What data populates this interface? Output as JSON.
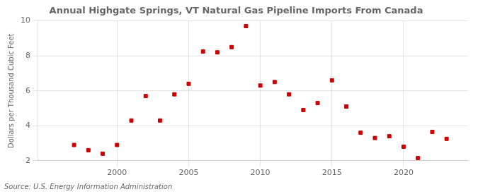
{
  "chart_data": {
    "type": "scatter",
    "title": "Annual Highgate Springs, VT Natural Gas Pipeline Imports From Canada",
    "ylabel": "Dollars per Thousand Cubic Feet",
    "source": "Source: U.S. Energy Information Administration",
    "x": [
      1997,
      1998,
      1999,
      2000,
      2001,
      2002,
      2003,
      2004,
      2005,
      2006,
      2007,
      2008,
      2009,
      2010,
      2011,
      2012,
      2013,
      2014,
      2015,
      2016,
      2017,
      2018,
      2019,
      2020,
      2021,
      2022,
      2023
    ],
    "values": [
      2.9,
      2.6,
      2.4,
      2.9,
      4.3,
      5.7,
      4.3,
      5.8,
      6.4,
      8.25,
      8.2,
      8.5,
      9.7,
      6.3,
      6.5,
      5.8,
      4.9,
      5.3,
      6.6,
      5.1,
      3.6,
      3.3,
      3.4,
      2.8,
      2.15,
      3.65,
      3.25
    ],
    "color": "#cc0000",
    "marker": "square",
    "xlim": [
      1994.5,
      2024.5
    ],
    "xticks": [
      2000,
      2005,
      2010,
      2015,
      2020
    ],
    "ylim": [
      2,
      10
    ],
    "yticks": [
      2,
      4,
      6,
      8,
      10
    ],
    "grid": true
  }
}
